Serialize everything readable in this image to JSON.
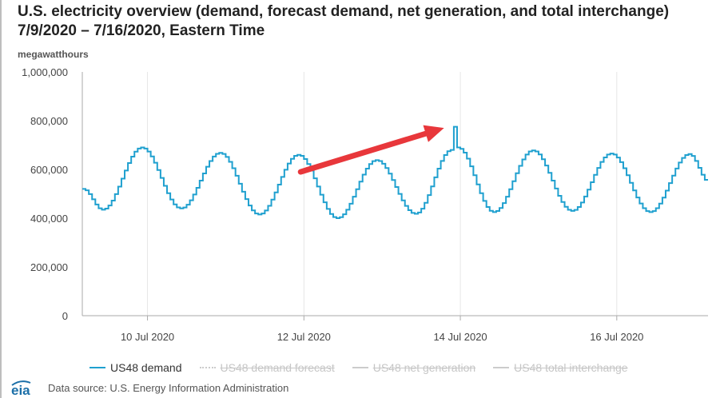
{
  "title": {
    "line1": "U.S. electricity overview (demand, forecast demand, net generation, and total interchange)",
    "line2": "7/9/2020 – 7/16/2020, Eastern Time"
  },
  "footer": {
    "logo_text": "eia",
    "source": "Data source: U.S. Energy Information Administration"
  },
  "colors": {
    "demand": "#1fa0cf",
    "inactive": "#cccccc",
    "grid": "#e6e6e6",
    "axis": "#aaaaaa",
    "arrow": "#e8373b",
    "logo": "#1b6fa8"
  },
  "chart_data": {
    "type": "line",
    "ylabel": "megawatthours",
    "ylim": [
      0,
      1000000
    ],
    "yticks": [
      0,
      200000,
      400000,
      600000,
      800000,
      1000000
    ],
    "ytick_labels": [
      "0",
      "200,000",
      "400,000",
      "600,000",
      "800,000",
      "1,000,000"
    ],
    "xlim": [
      "2020-07-09 04:00",
      "2020-07-17 04:00"
    ],
    "xticks": [
      "2020-07-10",
      "2020-07-12",
      "2020-07-14",
      "2020-07-16"
    ],
    "xtick_labels": [
      "10 Jul 2020",
      "12 Jul 2020",
      "14 Jul 2020",
      "16 Jul 2020"
    ],
    "grid": {
      "vertical": true,
      "horizontal": false
    },
    "legend_position": "bottom",
    "legend": [
      {
        "label": "US48 demand",
        "style": "solid",
        "active": true
      },
      {
        "label": "US48 demand forecast",
        "style": "dotted",
        "active": false
      },
      {
        "label": "US48 net generation",
        "style": "solid",
        "active": false
      },
      {
        "label": "US48 total interchange",
        "style": "solid",
        "active": false
      }
    ],
    "series": [
      {
        "name": "US48 demand",
        "step": "hourly",
        "daily_extremes": [
          {
            "time": "2020-07-09 04:00",
            "value": 520000
          },
          {
            "time": "2020-07-09 10:00",
            "value": 435000
          },
          {
            "time": "2020-07-09 22:00",
            "value": 690000
          },
          {
            "time": "2020-07-10 10:00",
            "value": 440000
          },
          {
            "time": "2020-07-10 22:00",
            "value": 668000
          },
          {
            "time": "2020-07-11 10:00",
            "value": 415000
          },
          {
            "time": "2020-07-11 22:00",
            "value": 660000
          },
          {
            "time": "2020-07-12 10:00",
            "value": 400000
          },
          {
            "time": "2020-07-12 22:00",
            "value": 638000
          },
          {
            "time": "2020-07-13 10:00",
            "value": 418000
          },
          {
            "time": "2020-07-13 21:00",
            "value": 680000
          },
          {
            "time": "2020-07-13 22:00",
            "value": 775000
          },
          {
            "time": "2020-07-13 23:00",
            "value": 690000
          },
          {
            "time": "2020-07-14 10:00",
            "value": 425000
          },
          {
            "time": "2020-07-14 22:00",
            "value": 678000
          },
          {
            "time": "2020-07-15 10:00",
            "value": 430000
          },
          {
            "time": "2020-07-15 22:00",
            "value": 665000
          },
          {
            "time": "2020-07-16 10:00",
            "value": 425000
          },
          {
            "time": "2020-07-16 22:00",
            "value": 663000
          },
          {
            "time": "2020-07-17 04:00",
            "value": 550000
          }
        ]
      }
    ],
    "annotations": [
      {
        "type": "arrow",
        "from": {
          "time": "2020-07-11 23:00",
          "value": 590000
        },
        "to": {
          "time": "2020-07-13 19:00",
          "value": 770000
        }
      }
    ]
  }
}
